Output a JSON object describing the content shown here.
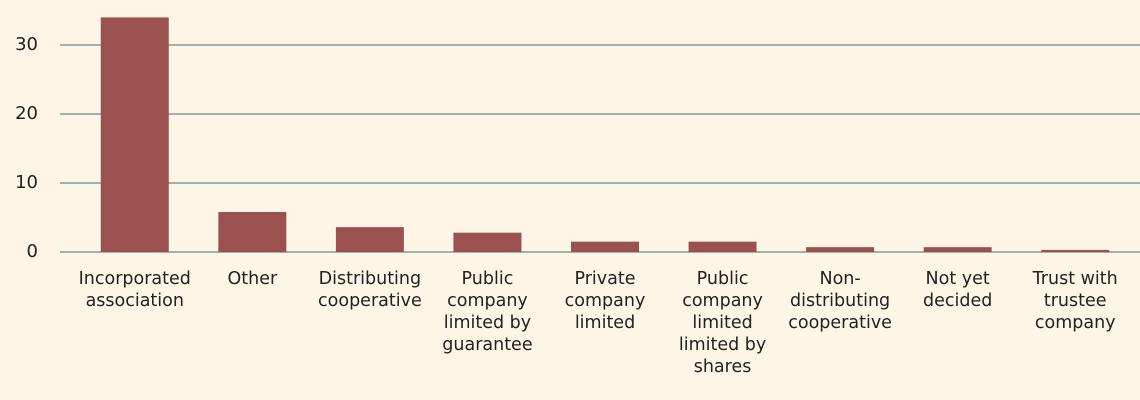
{
  "chart_data": {
    "type": "bar",
    "categories": [
      "Incorporated association",
      "Other",
      "Distributing cooperative",
      "Public company limited by guarantee",
      "Private company limited",
      "Public company limited limited by shares",
      "Non-distributing cooperative",
      "Not yet decided",
      "Trust with trustee company"
    ],
    "values": [
      34,
      5.8,
      3.6,
      2.8,
      1.5,
      1.5,
      0.7,
      0.7,
      0.3
    ],
    "color": "#9b5150",
    "ylim": [
      0,
      35
    ],
    "yticks": [
      0,
      10,
      20,
      30
    ],
    "grid": true
  }
}
